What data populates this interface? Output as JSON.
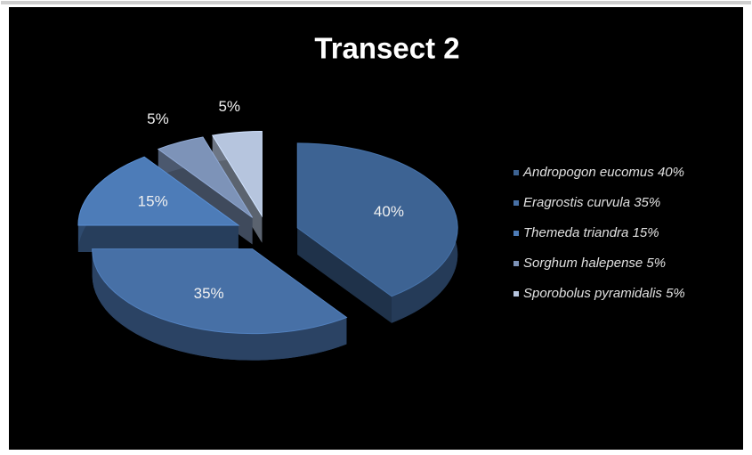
{
  "chart_data": {
    "type": "pie",
    "title": "Transect 2",
    "categories": [
      "Andropogon eucomus 40%",
      "Eragrostis curvula 35%",
      "Themeda triandra 15%",
      "Sorghum halepense 5%",
      "Sporobolus pyramidalis 5%"
    ],
    "values": [
      40,
      35,
      15,
      5,
      5
    ],
    "value_labels": [
      "40%",
      "35%",
      "15%",
      "5%",
      "5%"
    ],
    "colors": [
      "#3d6393",
      "#4770a6",
      "#4d7cb8",
      "#7d93b8",
      "#b6c5de"
    ],
    "legend": "right"
  }
}
